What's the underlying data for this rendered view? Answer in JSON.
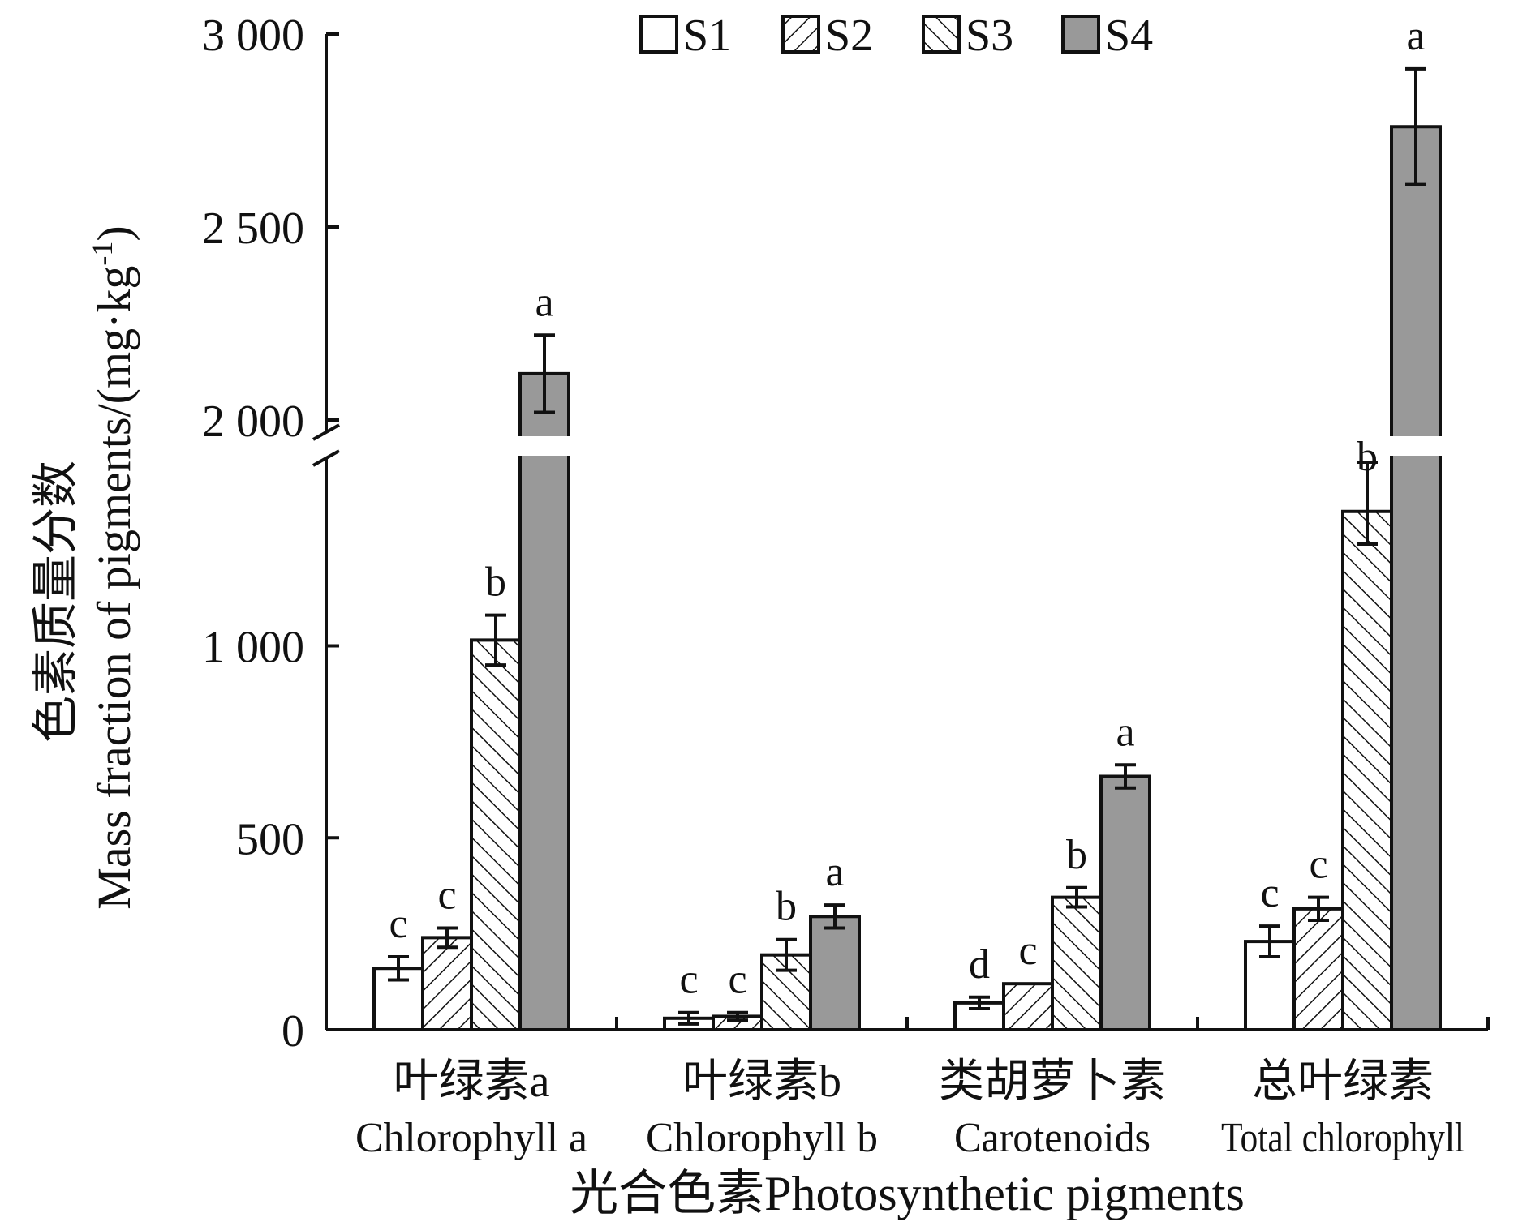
{
  "chart_data": {
    "type": "bar",
    "xlabel": "光合色素Photosynthetic pigments",
    "ylabel_cn": "色素质量分数",
    "ylabel_en": "Mass fraction of pigments/(mg·kg",
    "ylabel_sup": "-1",
    "ylabel_end": ")",
    "ylim": [
      0,
      3000
    ],
    "axis_break": [
      1400,
      2000
    ],
    "yticks": [
      {
        "value": 0,
        "label": "0"
      },
      {
        "value": 500,
        "label": "500"
      },
      {
        "value": 1000,
        "label": "1 000"
      },
      {
        "value": 2000,
        "label": "2 000"
      },
      {
        "value": 2500,
        "label": "2 500"
      },
      {
        "value": 3000,
        "label": "3 000"
      }
    ],
    "categories": [
      {
        "cn": "叶绿素a",
        "en": "Chlorophyll a"
      },
      {
        "cn": "叶绿素b",
        "en": "Chlorophyll b"
      },
      {
        "cn": "类胡萝卜素",
        "en": "Carotenoids"
      },
      {
        "cn": "总叶绿素",
        "en": "Total chlorophyll"
      }
    ],
    "series": [
      {
        "name": "S1",
        "pattern": "open",
        "values": [
          160,
          30,
          70,
          230
        ],
        "errors": [
          30,
          15,
          15,
          40
        ],
        "letters": [
          "c",
          "c",
          "d",
          "c"
        ]
      },
      {
        "name": "S2",
        "pattern": "hatch-forward",
        "values": [
          240,
          35,
          120,
          315
        ],
        "errors": [
          25,
          10,
          0,
          30
        ],
        "letters": [
          "c",
          "c",
          "c",
          "c"
        ]
      },
      {
        "name": "S3",
        "pattern": "hatch-back",
        "values": [
          1015,
          195,
          345,
          1350
        ],
        "errors": [
          65,
          40,
          25,
          85
        ],
        "letters": [
          "b",
          "b",
          "b",
          "b"
        ]
      },
      {
        "name": "S4",
        "pattern": "gray",
        "values": [
          2120,
          295,
          660,
          2760
        ],
        "errors": [
          100,
          30,
          30,
          150
        ],
        "letters": [
          "a",
          "a",
          "a",
          "a"
        ]
      }
    ],
    "legend": "top",
    "colors": {
      "open": "#ffffff",
      "gray": "#999999",
      "stroke": "#111111"
    }
  }
}
